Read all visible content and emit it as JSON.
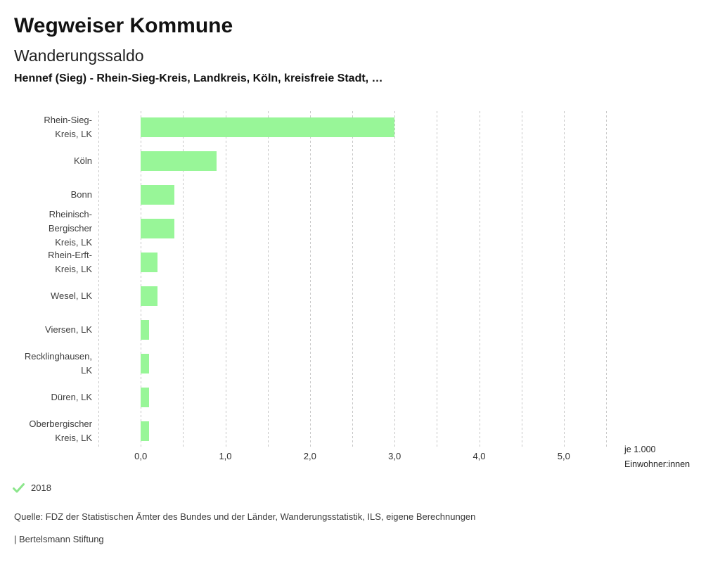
{
  "header": {
    "title": "Wegweiser Kommune",
    "subtitle": "Wanderungssaldo",
    "context": "Hennef (Sieg) - Rhein-Sieg-Kreis, Landkreis, Köln, kreisfreie Stadt, …"
  },
  "chart_data": {
    "type": "bar",
    "orientation": "horizontal",
    "title": "Wanderungssaldo",
    "subtitle": "Hennef (Sieg) - Rhein-Sieg-Kreis, Landkreis, Köln, kreisfreie Stadt, …",
    "categories": [
      "Rhein-Sieg-Kreis, LK",
      "Köln",
      "Bonn",
      "Rheinisch-Bergischer Kreis, LK",
      "Rhein-Erft-Kreis, LK",
      "Wesel, LK",
      "Viersen, LK",
      "Recklinghausen, LK",
      "Düren, LK",
      "Oberbergischer Kreis, LK"
    ],
    "category_lines": [
      [
        "Rhein-Sieg-",
        "Kreis, LK"
      ],
      [
        "Köln"
      ],
      [
        "Bonn"
      ],
      [
        "Rheinisch-",
        "Bergischer",
        "Kreis, LK"
      ],
      [
        "Rhein-Erft-",
        "Kreis, LK"
      ],
      [
        "Wesel, LK"
      ],
      [
        "Viersen, LK"
      ],
      [
        "Recklinghausen,",
        "LK"
      ],
      [
        "Düren, LK"
      ],
      [
        "Oberbergischer",
        "Kreis, LK"
      ]
    ],
    "series": [
      {
        "name": "2018",
        "values": [
          3.0,
          0.9,
          0.4,
          0.4,
          0.2,
          0.2,
          0.1,
          0.1,
          0.1,
          0.1
        ],
        "color": "#98f698"
      }
    ],
    "xlabel": "je 1.000 Einwohner:innen",
    "xlabel_lines": [
      "je 1.000",
      "Einwohner:innen"
    ],
    "ylabel": "",
    "xlim": [
      -0.5,
      5.5
    ],
    "x_ticks": [
      {
        "value": 0,
        "label": "0,0"
      },
      {
        "value": 1,
        "label": "1,0"
      },
      {
        "value": 2,
        "label": "2,0"
      },
      {
        "value": 3,
        "label": "3,0"
      },
      {
        "value": 4,
        "label": "4,0"
      },
      {
        "value": 5,
        "label": "5,0"
      }
    ],
    "gridline_step": 0.5,
    "grid": true,
    "legend_position": "bottom-left"
  },
  "legend": {
    "year": "2018",
    "check_color": "#8ce68c"
  },
  "footer": {
    "source": "Quelle: FDZ der Statistischen Ämter des Bundes und der Länder, Wanderungsstatistik, ILS, eigene Berechnungen",
    "attribution": "| Bertelsmann Stiftung"
  }
}
